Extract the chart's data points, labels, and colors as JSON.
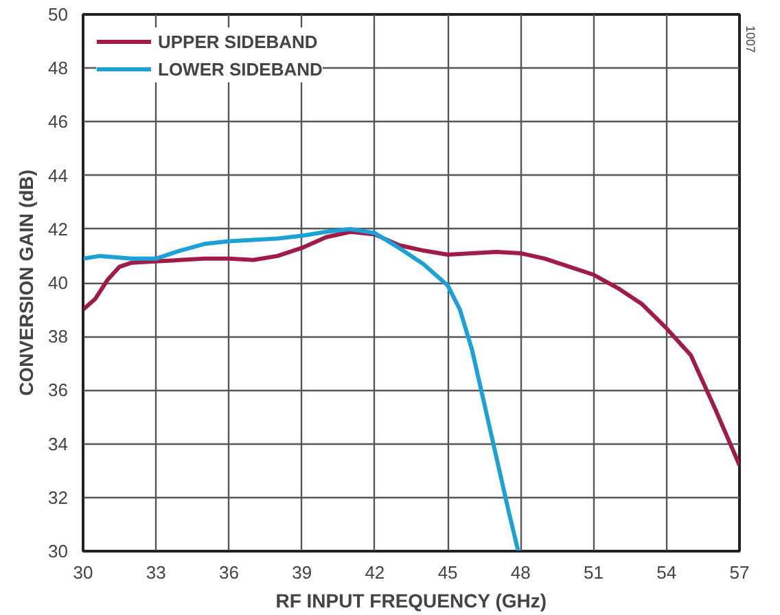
{
  "chart_data": {
    "type": "line",
    "xlabel": "RF INPUT FREQUENCY (GHz)",
    "ylabel": "CONVERSION GAIN (dB)",
    "xlim": [
      30,
      57
    ],
    "xticks": [
      30,
      33,
      36,
      39,
      42,
      45,
      48,
      51,
      54,
      57
    ],
    "ylim": [
      30,
      50
    ],
    "yticks": [
      30,
      32,
      34,
      36,
      38,
      40,
      42,
      44,
      46,
      48,
      50
    ],
    "grid": true,
    "legend": "top left",
    "marker": "none",
    "line_style": "solid",
    "annotations": [
      "1007"
    ],
    "series": [
      {
        "name": "UPPER SIDEBAND",
        "color": "#a01b48",
        "x": [
          30,
          30.5,
          31,
          31.5,
          32,
          33,
          34,
          35,
          36,
          37,
          38,
          39,
          40,
          41,
          42,
          43,
          44,
          45,
          46,
          47,
          48,
          49,
          50,
          51,
          52,
          53,
          54,
          55,
          56,
          57
        ],
        "values": [
          39.0,
          39.4,
          40.1,
          40.6,
          40.75,
          40.8,
          40.85,
          40.9,
          40.9,
          40.85,
          41.0,
          41.3,
          41.7,
          41.9,
          41.8,
          41.4,
          41.2,
          41.05,
          41.1,
          41.15,
          41.1,
          40.9,
          40.6,
          40.3,
          39.8,
          39.2,
          38.3,
          37.3,
          35.3,
          33.2
        ]
      },
      {
        "name": "LOWER SIDEBAND",
        "color": "#1ba1d6",
        "x": [
          30,
          30.7,
          32,
          33,
          34,
          35,
          36,
          37,
          38,
          39,
          40,
          41,
          42,
          43,
          44,
          45,
          45.5,
          46,
          46.5,
          47,
          47.5,
          47.9
        ],
        "values": [
          40.9,
          41.0,
          40.9,
          40.9,
          41.2,
          41.45,
          41.55,
          41.6,
          41.65,
          41.75,
          41.9,
          42.0,
          41.85,
          41.3,
          40.7,
          39.9,
          39.0,
          37.5,
          35.5,
          33.5,
          31.5,
          30.0
        ]
      }
    ]
  }
}
